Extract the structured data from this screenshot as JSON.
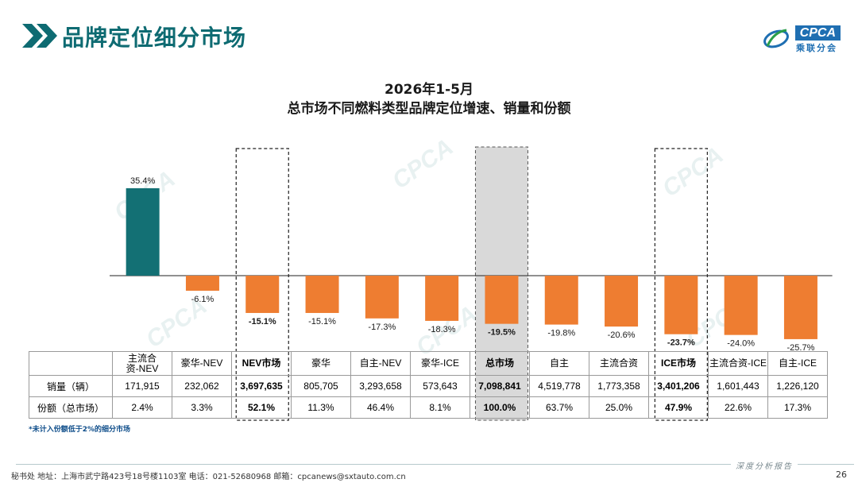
{
  "header": {
    "title": "品牌定位细分市场",
    "logo_word": "CPCA",
    "logo_sub": "乘联分会"
  },
  "colors": {
    "accent": "#0e6b72",
    "positive_bar": "#137074",
    "negative_bar": "#ee7d31",
    "highlight_fill": "#d9d9d9"
  },
  "icons": [
    "double-chevron-icon",
    "cpca-logo-icon"
  ],
  "chart_data": {
    "type": "bar",
    "title": "2026年1-5月",
    "subtitle": "总市场不同燃料类型品牌定位增速、销量和份额",
    "categories": [
      "主流合资-NEV",
      "豪华-NEV",
      "NEV市场",
      "豪华",
      "自主-NEV",
      "豪华-ICE",
      "总市场",
      "自主",
      "主流合资",
      "ICE市场",
      "主流合资-ICE",
      "自主-ICE"
    ],
    "series": [
      {
        "values": [
          35.4,
          -6.1,
          -15.1,
          -15.1,
          -17.3,
          -18.3,
          -19.5,
          -19.8,
          -20.6,
          -23.7,
          -24.0,
          -25.7
        ]
      }
    ],
    "data_labels": [
      "35.4%",
      "-6.1%",
      "-15.1%",
      "-15.1%",
      "-17.3%",
      "-18.3%",
      "-19.5%",
      "-19.8%",
      "-20.6%",
      "-23.7%",
      "-24.0%",
      "-25.7%"
    ],
    "bold_labels": [
      false,
      false,
      true,
      false,
      false,
      false,
      true,
      false,
      false,
      true,
      false,
      false
    ],
    "boxed_categories": [
      "NEV市场",
      "ICE市场"
    ],
    "shaded_categories": [
      "总市场"
    ],
    "ylim": [
      -30,
      40
    ],
    "grid": false,
    "legend": "none"
  },
  "table": {
    "header": [
      "主流合\n资-NEV",
      "豪华-NEV",
      "NEV市场",
      "豪华",
      "自主-NEV",
      "豪华-ICE",
      "总市场",
      "自主",
      "主流合资",
      "ICE市场",
      "主流合资-ICE",
      "自主-ICE"
    ],
    "rows": [
      {
        "label": "销量（辆）",
        "cells": [
          "171,915",
          "232,062",
          "3,697,635",
          "805,705",
          "3,293,658",
          "573,643",
          "7,098,841",
          "4,519,778",
          "1,773,358",
          "3,401,206",
          "1,601,443",
          "1,226,120"
        ]
      },
      {
        "label": "份额（总市场）",
        "cells": [
          "2.4%",
          "3.3%",
          "52.1%",
          "11.3%",
          "46.4%",
          "8.1%",
          "100.0%",
          "63.7%",
          "25.0%",
          "47.9%",
          "22.6%",
          "17.3%"
        ]
      }
    ],
    "bold_columns": [
      2,
      6,
      9
    ]
  },
  "note": "*未计入份额低于2%的细分市场",
  "footer": {
    "text": "秘书处   地址：上海市武宁路423号18号楼1103室  电话：021-52680968   邮箱：cpcanews@sxtauto.com.cn",
    "tag": "深度分析报告",
    "page_number": "26"
  },
  "watermark_text": "CPCA"
}
